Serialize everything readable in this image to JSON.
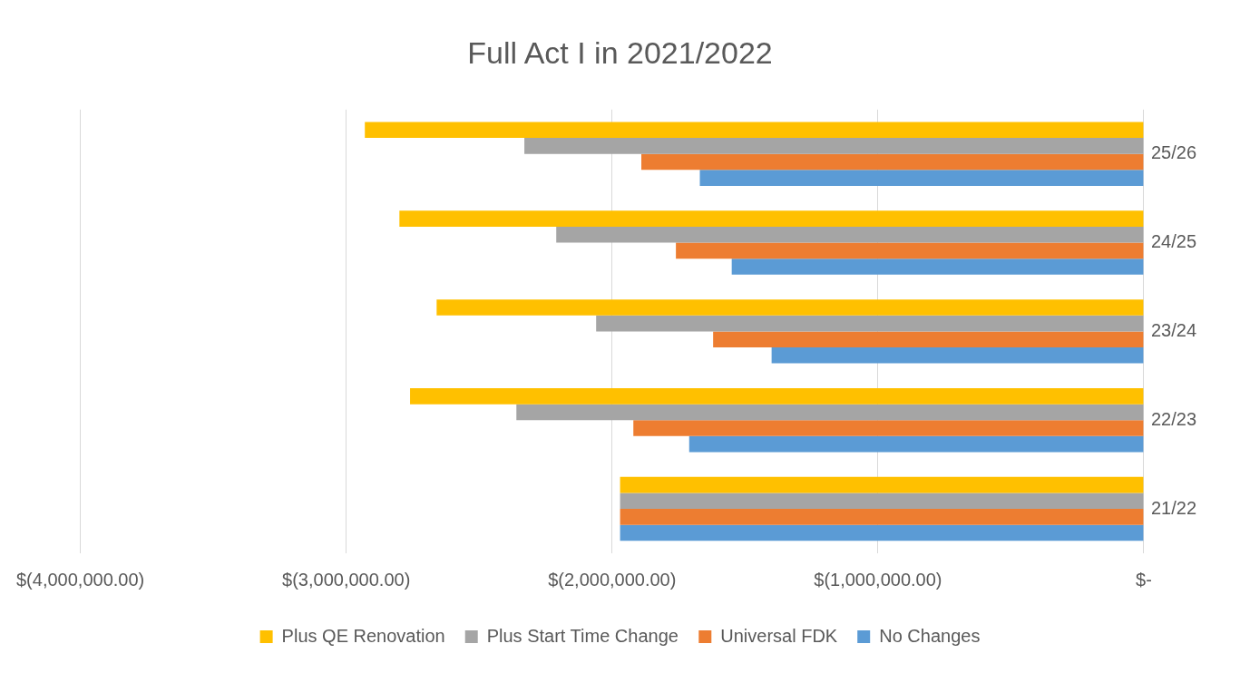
{
  "chart_data": {
    "type": "bar",
    "orientation": "horizontal",
    "title": "Full Act I in 2021/2022",
    "categories": [
      "25/26",
      "24/25",
      "23/24",
      "22/23",
      "21/22"
    ],
    "series": [
      {
        "name": "Plus QE Renovation",
        "color": "#ffc000",
        "values": [
          -2930000,
          -2800000,
          -2660000,
          -2760000,
          -1970000
        ]
      },
      {
        "name": "Plus Start Time Change",
        "color": "#a5a5a5",
        "values": [
          -2330000,
          -2210000,
          -2060000,
          -2360000,
          -1970000
        ]
      },
      {
        "name": "Universal FDK",
        "color": "#ed7d31",
        "values": [
          -1890000,
          -1760000,
          -1620000,
          -1920000,
          -1970000
        ]
      },
      {
        "name": "No Changes",
        "color": "#5b9bd5",
        "values": [
          -1670000,
          -1550000,
          -1400000,
          -1710000,
          -1970000
        ]
      }
    ],
    "xlim": [
      -4000000,
      0
    ],
    "xticks": [
      {
        "value": -4000000,
        "label": "$(4,000,000.00)"
      },
      {
        "value": -3000000,
        "label": "$(3,000,000.00)"
      },
      {
        "value": -2000000,
        "label": "$(2,000,000.00)"
      },
      {
        "value": -1000000,
        "label": "$(1,000,000.00)"
      },
      {
        "value": 0,
        "label": "$-"
      }
    ],
    "grid": "x",
    "legend": "bottom"
  }
}
